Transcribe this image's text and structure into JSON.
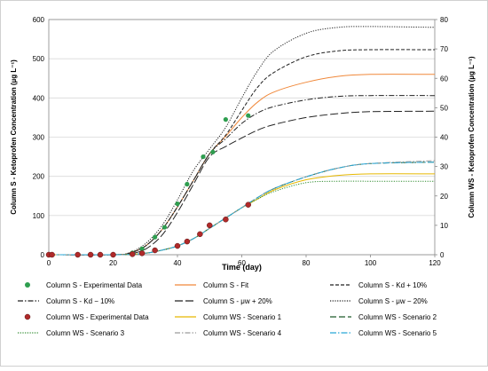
{
  "chart_data": {
    "type": "line",
    "xlabel": "Time (day)",
    "ylabel_left": "Column S - Ketoprofen Concentration (µg L⁻¹)",
    "ylabel_right": "Column WS - Ketoprofen Concentration (µg L⁻¹)",
    "xlim": [
      0,
      120
    ],
    "ylim_left": [
      0,
      600
    ],
    "ylim_right": [
      0,
      80
    ],
    "x_ticks": [
      0,
      20,
      40,
      60,
      80,
      100,
      120
    ],
    "y_left_ticks": [
      0,
      100,
      200,
      300,
      400,
      500,
      600
    ],
    "y_right_ticks": [
      0,
      10,
      20,
      30,
      40,
      50,
      60,
      70,
      80
    ],
    "grid": "horizontal",
    "legend_position": "bottom",
    "series": [
      {
        "name": "Column S - Experimental Data",
        "axis": "left",
        "kind": "markers",
        "color": "#2e9e4f",
        "x": [
          0,
          1,
          9,
          13,
          16,
          20,
          26,
          29,
          33,
          36,
          40,
          43,
          48,
          51,
          55,
          62
        ],
        "y": [
          0,
          0,
          0,
          0,
          0,
          0,
          5,
          15,
          45,
          70,
          130,
          180,
          250,
          262,
          345,
          355
        ]
      },
      {
        "name": "Column S - Fit",
        "axis": "left",
        "kind": "line",
        "color": "#f0883a",
        "dash": "none",
        "x": [
          0,
          20,
          25,
          30,
          35,
          40,
          45,
          50,
          55,
          60,
          65,
          70,
          80,
          90,
          100,
          120
        ],
        "y": [
          0,
          0,
          4,
          22,
          62,
          122,
          190,
          258,
          302,
          350,
          390,
          415,
          440,
          455,
          460,
          460
        ]
      },
      {
        "name": "Column S - Kd + 10%",
        "axis": "left",
        "kind": "line",
        "color": "#222222",
        "dash": "4,2",
        "x": [
          0,
          20,
          25,
          30,
          35,
          40,
          45,
          50,
          55,
          60,
          65,
          70,
          80,
          90,
          100,
          120
        ],
        "y": [
          0,
          0,
          4,
          22,
          62,
          122,
          190,
          258,
          305,
          368,
          428,
          465,
          505,
          520,
          523,
          523
        ]
      },
      {
        "name": "Column S - Kd − 10%",
        "axis": "left",
        "kind": "line",
        "color": "#222222",
        "dash": "6,2,1.5,2",
        "x": [
          0,
          20,
          25,
          30,
          35,
          40,
          45,
          50,
          55,
          60,
          65,
          70,
          80,
          90,
          100,
          120
        ],
        "y": [
          0,
          0,
          4,
          22,
          62,
          122,
          190,
          258,
          296,
          335,
          362,
          378,
          395,
          404,
          406,
          406
        ]
      },
      {
        "name": "Column S - μw + 20%",
        "axis": "left",
        "kind": "line",
        "color": "#222222",
        "dash": "9,3",
        "x": [
          0,
          20,
          25,
          30,
          35,
          40,
          45,
          50,
          55,
          60,
          65,
          70,
          80,
          90,
          100,
          120
        ],
        "y": [
          0,
          0,
          2,
          14,
          48,
          108,
          180,
          250,
          276,
          298,
          318,
          332,
          350,
          360,
          365,
          366
        ]
      },
      {
        "name": "Column S - μw − 20%",
        "axis": "left",
        "kind": "line",
        "color": "#222222",
        "dash": "1.2,1.5",
        "x": [
          0,
          20,
          25,
          30,
          35,
          40,
          45,
          50,
          55,
          60,
          65,
          70,
          80,
          90,
          100,
          120
        ],
        "y": [
          0,
          0,
          5,
          28,
          72,
          140,
          215,
          270,
          325,
          400,
          470,
          520,
          565,
          580,
          582,
          580
        ]
      },
      {
        "name": "Column WS - Experimental Data",
        "axis": "right",
        "kind": "markers",
        "color": "#b02a2a",
        "x": [
          0,
          1,
          9,
          13,
          16,
          20,
          26,
          29,
          33,
          40,
          43,
          47,
          50,
          55,
          62
        ],
        "y": [
          0,
          0,
          0,
          0,
          0,
          0,
          0.2,
          0.5,
          1.5,
          3.0,
          4.5,
          7.0,
          10.0,
          12.0,
          17.0
        ]
      },
      {
        "name": "Column WS - Scenario 1",
        "axis": "right",
        "kind": "line",
        "color": "#e6b800",
        "dash": "none",
        "x": [
          0,
          20,
          25,
          30,
          35,
          40,
          45,
          50,
          55,
          60,
          65,
          70,
          80,
          90,
          100,
          120
        ],
        "y": [
          0,
          0,
          0.1,
          0.5,
          1.5,
          3.0,
          5.5,
          9.0,
          12.5,
          16.0,
          19.0,
          22.0,
          25.5,
          27.0,
          27.5,
          27.5
        ]
      },
      {
        "name": "Column WS - Scenario 2",
        "axis": "right",
        "kind": "line",
        "color": "#1f5a2a",
        "dash": "7,3",
        "x": [
          0,
          20,
          25,
          30,
          35,
          40,
          45,
          50,
          55,
          60,
          65,
          70,
          80,
          90,
          100,
          120
        ],
        "y": [
          0,
          0,
          0.1,
          0.5,
          1.5,
          3.0,
          5.5,
          9.0,
          12.5,
          16.0,
          19.5,
          22.5,
          26.5,
          29.5,
          31.0,
          31.5
        ]
      },
      {
        "name": "Column WS - Scenario 3",
        "axis": "right",
        "kind": "line",
        "color": "#2e8b2e",
        "dash": "1.2,1.5",
        "x": [
          0,
          20,
          25,
          30,
          35,
          40,
          45,
          50,
          55,
          60,
          65,
          70,
          80,
          90,
          100,
          120
        ],
        "y": [
          0,
          0,
          0.1,
          0.5,
          1.5,
          3.0,
          5.5,
          9.0,
          12.5,
          16.0,
          19.0,
          21.5,
          24.5,
          25.0,
          25.0,
          25.0
        ]
      },
      {
        "name": "Column WS - Scenario 4",
        "axis": "right",
        "kind": "line",
        "color": "#9a9a9a",
        "dash": "6,2,1.5,2",
        "x": [
          0,
          20,
          25,
          30,
          35,
          40,
          45,
          50,
          55,
          60,
          65,
          70,
          80,
          90,
          100,
          120
        ],
        "y": [
          0,
          0,
          0.1,
          0.5,
          1.5,
          3.0,
          5.5,
          9.0,
          12.5,
          16.0,
          19.5,
          22.5,
          26.5,
          29.5,
          31.0,
          32.0
        ]
      },
      {
        "name": "Column WS - Scenario 5",
        "axis": "right",
        "kind": "line",
        "color": "#29a8d8",
        "dash": "7,2,1.5,2",
        "x": [
          0,
          20,
          25,
          30,
          35,
          40,
          45,
          50,
          55,
          60,
          65,
          70,
          80,
          90,
          100,
          120
        ],
        "y": [
          0,
          0,
          0.1,
          0.5,
          1.5,
          3.0,
          5.5,
          9.0,
          12.5,
          16.0,
          19.5,
          22.5,
          26.5,
          29.5,
          31.0,
          31.5
        ]
      }
    ]
  }
}
